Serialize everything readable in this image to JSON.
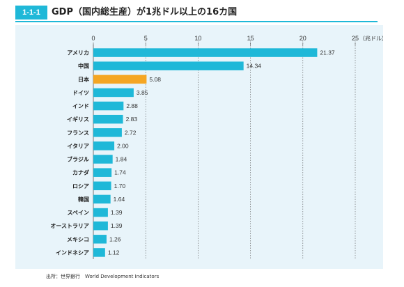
{
  "header": {
    "badge": "1-1-1",
    "title": "GDP（国内総生産）が1兆ドル以上の16カ国"
  },
  "colors": {
    "accent": "#1fb8d8",
    "highlight": "#f5a623",
    "panel_bg": "#e8f4fa"
  },
  "source": "出所：世界銀行　World Development Indicators",
  "chart_data": {
    "type": "bar",
    "orientation": "horizontal",
    "unit_label": "（兆ドル）",
    "xlim": [
      0,
      25
    ],
    "xticks": [
      0,
      5,
      10,
      15,
      20,
      25
    ],
    "grid": true,
    "categories": [
      "アメリカ",
      "中国",
      "日本",
      "ドイツ",
      "インド",
      "イギリス",
      "フランス",
      "イタリア",
      "ブラジル",
      "カナダ",
      "ロシア",
      "韓国",
      "スペイン",
      "オーストラリア",
      "メキシコ",
      "インドネシア"
    ],
    "values": [
      21.37,
      14.34,
      5.08,
      3.85,
      2.88,
      2.83,
      2.72,
      2.0,
      1.84,
      1.74,
      1.7,
      1.64,
      1.39,
      1.39,
      1.26,
      1.12
    ],
    "value_labels": [
      "21.37",
      "14.34",
      "5.08",
      "3.85",
      "2.88",
      "2.83",
      "2.72",
      "2.00",
      "1.84",
      "1.74",
      "1.70",
      "1.64",
      "1.39",
      "1.39",
      "1.26",
      "1.12"
    ],
    "highlight_category": "日本"
  }
}
